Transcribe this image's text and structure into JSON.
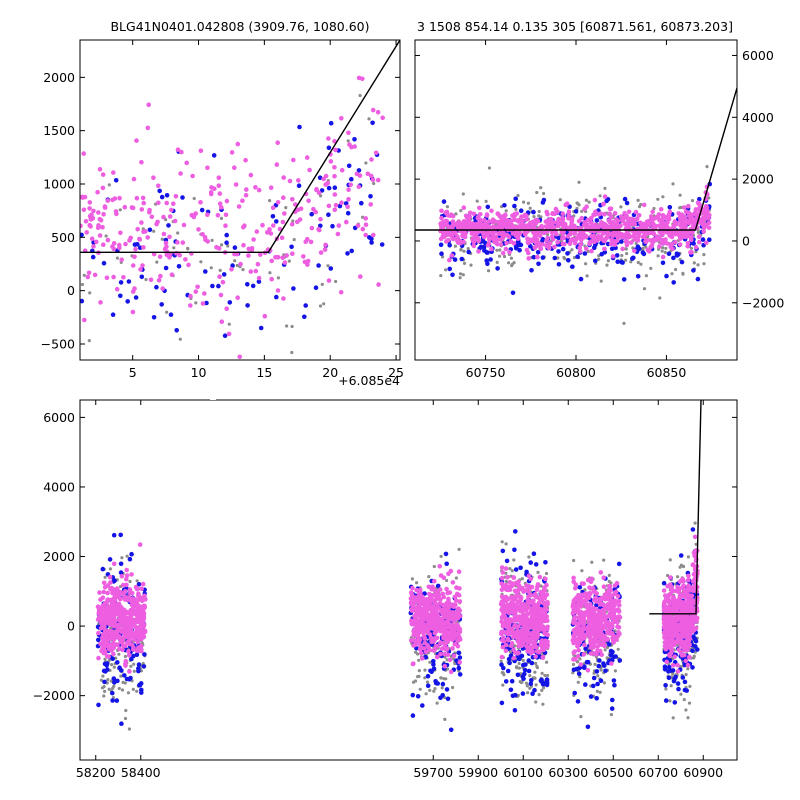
{
  "colors": {
    "grey": "#8c8c8c",
    "blue": "#1414e6",
    "pink": "#ee5ee0",
    "line": "#000000",
    "axis": "#000000"
  },
  "chart_data": [
    {
      "id": "top-left",
      "type": "scatter",
      "title": "BLG41N0401.042808 (3909.76, 1080.60)",
      "xlim": [
        1,
        25.3
      ],
      "ylim": [
        -650,
        2350
      ],
      "xticks": [
        5,
        10,
        15,
        20,
        25
      ],
      "xtick_labels": [
        "5",
        "10",
        "15",
        "20",
        "25"
      ],
      "yticks": [
        -500,
        0,
        500,
        1000,
        1500,
        2000
      ],
      "ytick_labels": [
        "−500",
        "0",
        "500",
        "1000",
        "1500",
        "2000"
      ],
      "x_offset_label": "+6.085e4",
      "model_line": [
        [
          1,
          360
        ],
        [
          15.3,
          360
        ],
        [
          25.3,
          2350
        ]
      ],
      "series": [
        {
          "name": "grey",
          "x_range": [
            1,
            24
          ],
          "y_center": 380,
          "y_spread": 420
        },
        {
          "name": "blue",
          "x_range": [
            1,
            24
          ],
          "y_center": 300,
          "y_spread": 380
        },
        {
          "name": "pink",
          "x_range": [
            1,
            24
          ],
          "y_center": 520,
          "y_spread": 380
        }
      ]
    },
    {
      "id": "top-right",
      "type": "scatter",
      "title": "3 1508 854.14 0.135 305 [60871.561, 60873.203]",
      "xlim": [
        60711,
        60889
      ],
      "ylim": [
        -3850,
        6500
      ],
      "xticks": [
        60750,
        60800,
        60850
      ],
      "xtick_labels": [
        "60750",
        "60800",
        "60850"
      ],
      "yticks": [
        -2000,
        0,
        2000,
        4000,
        6000
      ],
      "ytick_labels": [
        "−2000",
        "0",
        "2000",
        "4000",
        "6000"
      ],
      "model_line": [
        [
          60711,
          354
        ],
        [
          60866,
          354
        ],
        [
          60889,
          4950
        ]
      ],
      "series": [
        {
          "name": "grey",
          "x_range": [
            60725,
            60874
          ],
          "y_center": 150,
          "y_spread": 700
        },
        {
          "name": "blue",
          "x_range": [
            60725,
            60874
          ],
          "y_center": 100,
          "y_spread": 550
        },
        {
          "name": "pink",
          "x_range": [
            60725,
            60874
          ],
          "y_center": 380,
          "y_spread": 300
        }
      ]
    },
    {
      "id": "bottom",
      "type": "scatter",
      "title": "",
      "xlim": [
        58130,
        61050
      ],
      "ylim": [
        -3850,
        6500
      ],
      "xticks": [
        58200,
        58400,
        59700,
        59900,
        60100,
        60300,
        60500,
        60700,
        60900
      ],
      "xtick_labels": [
        "58200",
        "58400",
        "59700",
        "59900",
        "60100",
        "60300",
        "60500",
        "60700",
        "60900"
      ],
      "yticks": [
        -2000,
        0,
        2000,
        4000,
        6000
      ],
      "ytick_labels": [
        "−2000",
        "0",
        "2000",
        "4000",
        "6000"
      ],
      "model_line": [
        [
          60660,
          354
        ],
        [
          60868,
          354
        ],
        [
          60890,
          6500
        ]
      ],
      "series": [
        {
          "name": "grey",
          "season_ranges": [
            [
              58210,
              58420
            ],
            [
              59600,
              59820
            ],
            [
              60000,
              60210
            ],
            [
              60320,
              60530
            ],
            [
              60725,
              60874
            ]
          ],
          "y_center": -250,
          "y_spread": 900
        },
        {
          "name": "blue",
          "season_ranges": [
            [
              58210,
              58420
            ],
            [
              59600,
              59820
            ],
            [
              60000,
              60210
            ],
            [
              60320,
              60530
            ],
            [
              60725,
              60874
            ]
          ],
          "y_center": -250,
          "y_spread": 900
        },
        {
          "name": "pink",
          "season_ranges": [
            [
              58210,
              58420
            ],
            [
              59600,
              59820
            ],
            [
              60000,
              60210
            ],
            [
              60320,
              60530
            ],
            [
              60725,
              60874
            ]
          ],
          "y_center": 200,
          "y_spread": 500
        }
      ]
    }
  ]
}
